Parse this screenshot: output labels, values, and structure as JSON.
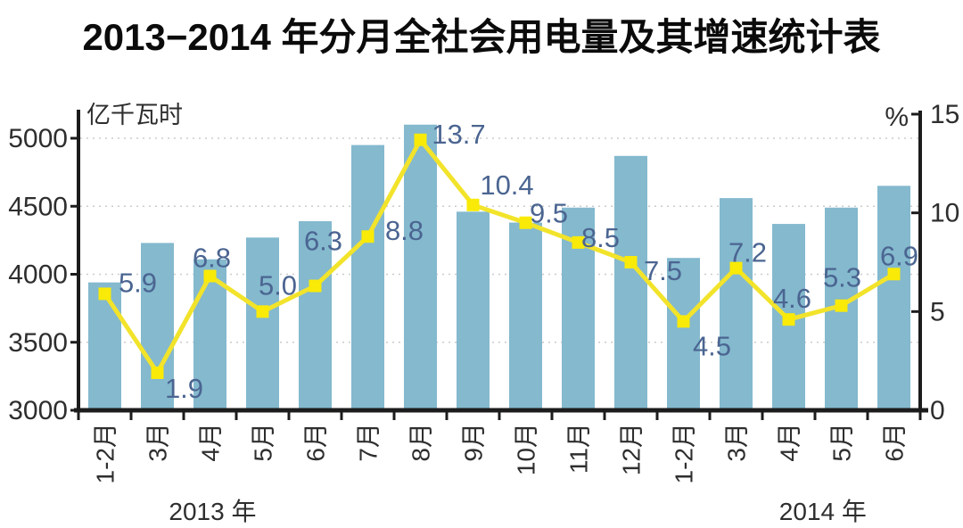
{
  "title": "2013−2014 年分月全社会用电量及其增速统计表",
  "chart_data": {
    "type": "combo_bar_line",
    "title": "2013−2014 年分月全社会用电量及其增速统计表",
    "categories": [
      "1-2月",
      "3月",
      "4月",
      "5月",
      "6月",
      "7月",
      "8月",
      "9月",
      "10月",
      "11月",
      "12月",
      "1-2月",
      "3月",
      "4月",
      "5月",
      "6月"
    ],
    "year_groups": [
      {
        "label": "2013 年",
        "label_slot": 2.05
      },
      {
        "label": "2014 年",
        "label_slot": 13.65
      }
    ],
    "series": [
      {
        "name": "全社会用电量",
        "type": "bar",
        "axis": "left",
        "unit": "亿千瓦时",
        "color": "#84b9ce",
        "values": [
          3940,
          4230,
          4110,
          4270,
          4390,
          4950,
          5100,
          4460,
          4380,
          4490,
          4870,
          4120,
          4560,
          4370,
          4490,
          4650
        ]
      },
      {
        "name": "增速",
        "type": "line",
        "axis": "right",
        "unit": "%",
        "color": "#f2e32b",
        "marker_color": "#f9ea07",
        "label_color": "#4b6591",
        "values": [
          5.9,
          1.9,
          6.8,
          5.0,
          6.3,
          8.8,
          13.7,
          10.4,
          9.5,
          8.5,
          7.5,
          4.5,
          7.2,
          4.6,
          5.3,
          6.9
        ],
        "labels": [
          "5.9",
          "1.9",
          "6.8",
          "5.0",
          "6.3",
          "8.8",
          "13.7",
          "10.4",
          "9.5",
          "8.5",
          "7.5",
          "4.5",
          "7.2",
          "4.6",
          "5.3",
          "6.9"
        ],
        "label_offsets": [
          [
            37,
            -12
          ],
          [
            30,
            18
          ],
          [
            2,
            -20
          ],
          [
            17,
            -29
          ],
          [
            9,
            -50
          ],
          [
            41,
            -6
          ],
          [
            43,
            -6
          ],
          [
            38,
            -22
          ],
          [
            26,
            -10
          ],
          [
            25,
            -5
          ],
          [
            36,
            10
          ],
          [
            32,
            28
          ],
          [
            13,
            -17
          ],
          [
            4,
            -23
          ],
          [
            1,
            -31
          ],
          [
            6,
            -20
          ]
        ]
      }
    ],
    "left_axis": {
      "title": "亿千瓦时",
      "min": 3000,
      "max": 5000,
      "ticks": [
        3000,
        3500,
        4000,
        4500,
        5000
      ]
    },
    "right_axis": {
      "title": "%",
      "min": 0,
      "max": 15,
      "ticks": [
        0,
        5,
        10,
        15
      ]
    },
    "grid": {
      "horizontal": true,
      "style": "dotted",
      "color": "#cbcbcb"
    },
    "axis_color": "#1c1c1c",
    "tick_label_color": "#2e2e2e",
    "background": "#ffffff",
    "legend": "none"
  }
}
